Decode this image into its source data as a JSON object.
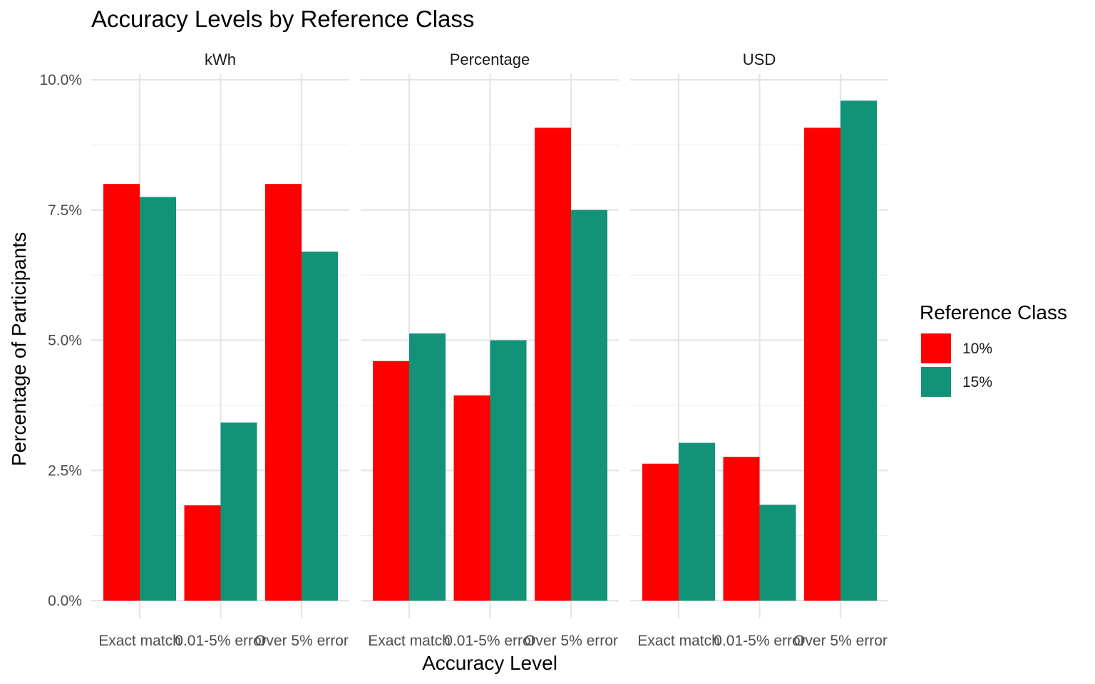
{
  "chart_data": {
    "type": "bar",
    "title": "Accuracy Levels by Reference Class",
    "xlabel": "Accuracy Level",
    "ylabel": "Percentage of Participants",
    "categories": [
      "Exact match",
      "0.01-5% error",
      "Over 5% error"
    ],
    "y_ticks": [
      "0.0%",
      "2.5%",
      "5.0%",
      "7.5%",
      "10.0%"
    ],
    "y_tick_values": [
      0,
      2.5,
      5,
      7.5,
      10
    ],
    "ylim": [
      0,
      10
    ],
    "legend": {
      "title": "Reference Class",
      "placement": "right",
      "entries": [
        {
          "label": "10%",
          "color": "#FF0000"
        },
        {
          "label": "15%",
          "color": "#129378"
        }
      ]
    },
    "facets": [
      {
        "name": "kWh",
        "series": [
          {
            "name": "10%",
            "values": [
              8.0,
              1.83,
              8.0
            ]
          },
          {
            "name": "15%",
            "values": [
              7.75,
              3.42,
              6.7
            ]
          }
        ]
      },
      {
        "name": "Percentage",
        "series": [
          {
            "name": "10%",
            "values": [
              4.6,
              3.94,
              9.08
            ]
          },
          {
            "name": "15%",
            "values": [
              5.13,
              5.0,
              7.5
            ]
          }
        ]
      },
      {
        "name": "USD",
        "series": [
          {
            "name": "10%",
            "values": [
              2.63,
              2.76,
              9.08
            ]
          },
          {
            "name": "15%",
            "values": [
              3.03,
              1.84,
              9.6
            ]
          }
        ]
      }
    ],
    "grid": true
  }
}
